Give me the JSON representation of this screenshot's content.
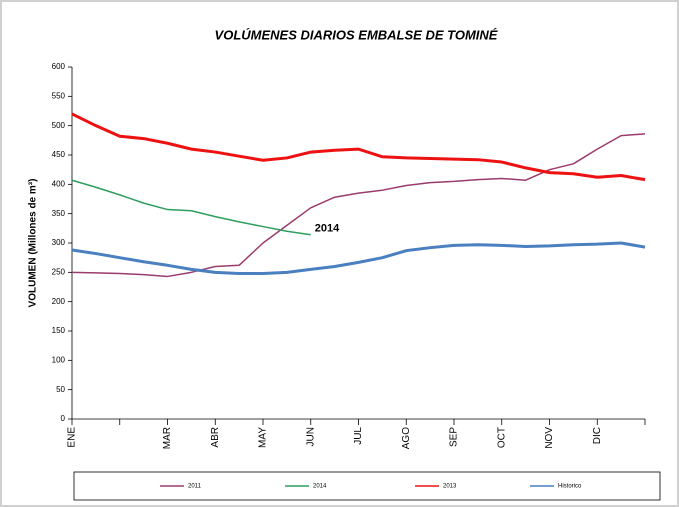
{
  "chart_data": {
    "type": "line",
    "title": "VOLÚMENES DIARIOS EMBALSE DE TOMINÉ",
    "y_label": "VOLUMEN (Millones de m³)",
    "categories": [
      "ENE",
      null,
      "MAR",
      "ABR",
      "MAY",
      "JUN",
      "JUL",
      "AGO",
      "SEP",
      "OCT",
      "NOV",
      "DIC"
    ],
    "x": [
      0,
      0.5,
      1,
      1.5,
      2,
      2.5,
      3,
      3.5,
      4,
      4.5,
      5,
      5.5,
      6,
      6.5,
      7,
      7.5,
      8,
      8.5,
      9,
      9.5,
      10,
      10.5,
      11,
      11.5,
      12
    ],
    "xlim": [
      0,
      12
    ],
    "ylim": [
      0,
      600
    ],
    "yticks": [
      0,
      50,
      100,
      150,
      200,
      250,
      300,
      350,
      400,
      450,
      500,
      550,
      600
    ],
    "grid": false,
    "legend": "bottom",
    "annotation": "2014",
    "series": [
      {
        "name": "2011",
        "color": "#9b3b6e",
        "width": 1.5,
        "values": [
          250,
          249,
          248,
          246,
          243,
          250,
          260,
          262,
          300,
          330,
          360,
          378,
          385,
          390,
          398,
          403,
          405,
          408,
          410,
          407,
          425,
          435,
          460,
          483,
          486
        ]
      },
      {
        "name": "2014",
        "color": "#2e9e5e",
        "width": 1.5,
        "values": [
          407,
          395,
          382,
          368,
          357,
          355,
          345,
          336,
          328,
          320,
          314,
          null,
          null,
          null,
          null,
          null,
          null,
          null,
          null,
          null,
          null,
          null,
          null,
          null,
          null
        ]
      },
      {
        "name": "2013",
        "color": "#ee1111",
        "width": 3,
        "values": [
          520,
          500,
          482,
          478,
          470,
          460,
          455,
          448,
          441,
          445,
          455,
          458,
          460,
          447,
          445,
          444,
          443,
          442,
          438,
          428,
          420,
          418,
          412,
          415,
          408
        ]
      },
      {
        "name": "Historico",
        "color": "#4a7fc0",
        "width": 3,
        "values": [
          288,
          282,
          275,
          268,
          262,
          255,
          250,
          248,
          248,
          250,
          255,
          260,
          267,
          275,
          287,
          292,
          296,
          297,
          296,
          294,
          295,
          297,
          298,
          300,
          293
        ]
      }
    ]
  }
}
